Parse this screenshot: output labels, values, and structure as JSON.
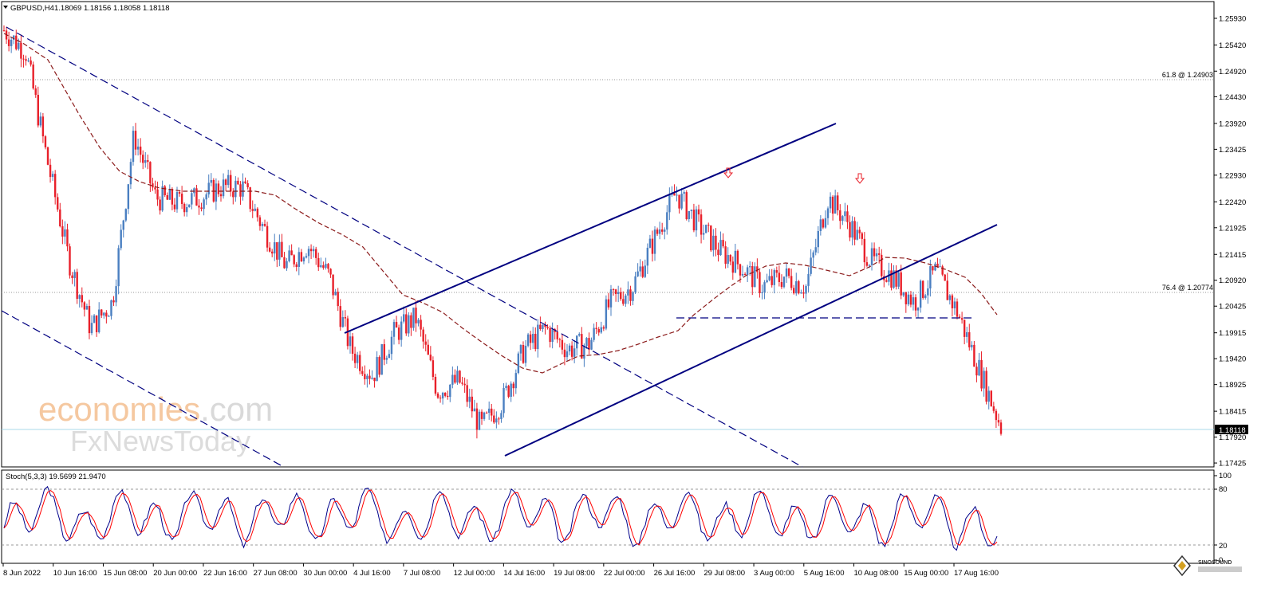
{
  "header": {
    "symbol_tf": "GBPUSD,H4",
    "ohlc": "1.18069 1.18156 1.18058 1.18118"
  },
  "price_axis": {
    "ticks": [
      "1.25930",
      "1.25420",
      "1.24920",
      "1.24430",
      "1.23920",
      "1.23425",
      "1.22930",
      "1.22420",
      "1.21925",
      "1.21415",
      "1.20920",
      "1.20425",
      "1.19915",
      "1.19420",
      "1.18925",
      "1.18415",
      "1.17920",
      "1.17425"
    ],
    "current_price": "1.18118",
    "min": 1.1735,
    "max": 1.2625
  },
  "fib_levels": [
    {
      "label": "61.8 @ 1.24903",
      "price": 1.24903
    },
    {
      "label": "76.4 @ 1.20774",
      "price": 1.20774
    }
  ],
  "watermark": {
    "line1_a": "economies",
    "line1_b": ".com",
    "line2": "FxNewsToday"
  },
  "stoch": {
    "label": "Stoch(5,3,3) 19.5699 21.9470",
    "levels": [
      "100",
      "80",
      "20",
      "0"
    ]
  },
  "time_axis": {
    "labels": [
      "8 Jun 2022",
      "10 Jun 16:00",
      "15 Jun 08:00",
      "20 Jun 00:00",
      "22 Jun 16:00",
      "27 Jun 08:00",
      "30 Jun 00:00",
      "4 Jul 16:00",
      "7 Jul 08:00",
      "12 Jul 00:00",
      "14 Jul 16:00",
      "19 Jul 08:00",
      "22 Jul 00:00",
      "26 Jul 16:00",
      "29 Jul 08:00",
      "3 Aug 00:00",
      "5 Aug 16:00",
      "10 Aug 08:00",
      "15 Aug 00:00",
      "17 Aug 16:00"
    ]
  },
  "logo": {
    "text": "SINOSOUND"
  },
  "colors": {
    "bull": "#4a7fc1",
    "bear": "#e8202a",
    "channel": "#000080",
    "ma": "#8b1a1a",
    "stoch_main": "#00008b",
    "stoch_signal": "#ff0000",
    "current_line": "#a8d8e8"
  },
  "chart_data": [
    {
      "type": "candlestick",
      "title": "GBPUSD,H4",
      "xlabel": "",
      "ylabel": "",
      "ylim": [
        1.1735,
        1.2625
      ],
      "x_range": [
        "8 Jun 2022",
        "17 Aug 16:00"
      ],
      "close_path": [
        {
          "x": "8 Jun 2022",
          "y": 1.257
        },
        {
          "x": "9 Jun 2022",
          "y": 1.253
        },
        {
          "x": "10 Jun 16:00",
          "y": 1.232
        },
        {
          "x": "13 Jun",
          "y": 1.213
        },
        {
          "x": "14 Jun",
          "y": 1.2
        },
        {
          "x": "15 Jun 08:00",
          "y": 1.205
        },
        {
          "x": "15 Jun 16:00",
          "y": 1.237
        },
        {
          "x": "17 Jun",
          "y": 1.225
        },
        {
          "x": "20 Jun 00:00",
          "y": 1.224
        },
        {
          "x": "22 Jun 16:00",
          "y": 1.225
        },
        {
          "x": "24 Jun",
          "y": 1.227
        },
        {
          "x": "27 Jun 08:00",
          "y": 1.227
        },
        {
          "x": "28 Jun",
          "y": 1.219
        },
        {
          "x": "30 Jun 00:00",
          "y": 1.212
        },
        {
          "x": "1 Jul",
          "y": 1.216
        },
        {
          "x": "4 Jul 16:00",
          "y": 1.21
        },
        {
          "x": "5 Jul",
          "y": 1.196
        },
        {
          "x": "6 Jul",
          "y": 1.191
        },
        {
          "x": "7 Jul 08:00",
          "y": 1.199
        },
        {
          "x": "8 Jul",
          "y": 1.202
        },
        {
          "x": "12 Jul 00:00",
          "y": 1.188
        },
        {
          "x": "13 Jul",
          "y": 1.19
        },
        {
          "x": "14 Jul 16:00",
          "y": 1.181
        },
        {
          "x": "15 Jul",
          "y": 1.186
        },
        {
          "x": "18 Jul",
          "y": 1.196
        },
        {
          "x": "19 Jul 08:00",
          "y": 1.2
        },
        {
          "x": "21 Jul",
          "y": 1.196
        },
        {
          "x": "22 Jul 00:00",
          "y": 1.197
        },
        {
          "x": "25 Jul",
          "y": 1.205
        },
        {
          "x": "26 Jul 16:00",
          "y": 1.208
        },
        {
          "x": "28 Jul",
          "y": 1.217
        },
        {
          "x": "29 Jul 08:00",
          "y": 1.226
        },
        {
          "x": "1 Aug",
          "y": 1.22
        },
        {
          "x": "3 Aug 00:00",
          "y": 1.215
        },
        {
          "x": "4 Aug",
          "y": 1.212
        },
        {
          "x": "5 Aug 16:00",
          "y": 1.208
        },
        {
          "x": "8 Aug",
          "y": 1.21
        },
        {
          "x": "10 Aug 08:00",
          "y": 1.208
        },
        {
          "x": "10 Aug 16:00",
          "y": 1.225
        },
        {
          "x": "11 Aug",
          "y": 1.22
        },
        {
          "x": "12 Aug",
          "y": 1.213
        },
        {
          "x": "15 Aug 00:00",
          "y": 1.21
        },
        {
          "x": "16 Aug",
          "y": 1.205
        },
        {
          "x": "16 Aug 12:00",
          "y": 1.211
        },
        {
          "x": "17 Aug 16:00",
          "y": 1.203
        },
        {
          "x": "18 Aug",
          "y": 1.192
        },
        {
          "x": "19 Aug",
          "y": 1.1812
        }
      ],
      "annotations": [
        "down-arrow near 29 Jul high",
        "down-arrow near 10 Aug high"
      ]
    },
    {
      "type": "line",
      "title": "Stoch(5,3,3) 19.5699 21.9470",
      "ylim": [
        0,
        100
      ],
      "levels": [
        80,
        20
      ],
      "series": [
        {
          "values": [
            20,
            95,
            5,
            90,
            20,
            90,
            20,
            85,
            25,
            95,
            10,
            90,
            15,
            95,
            20,
            95,
            10,
            95,
            20,
            90,
            15,
            80,
            10,
            95,
            15,
            20
          ]
        }
      ]
    }
  ]
}
